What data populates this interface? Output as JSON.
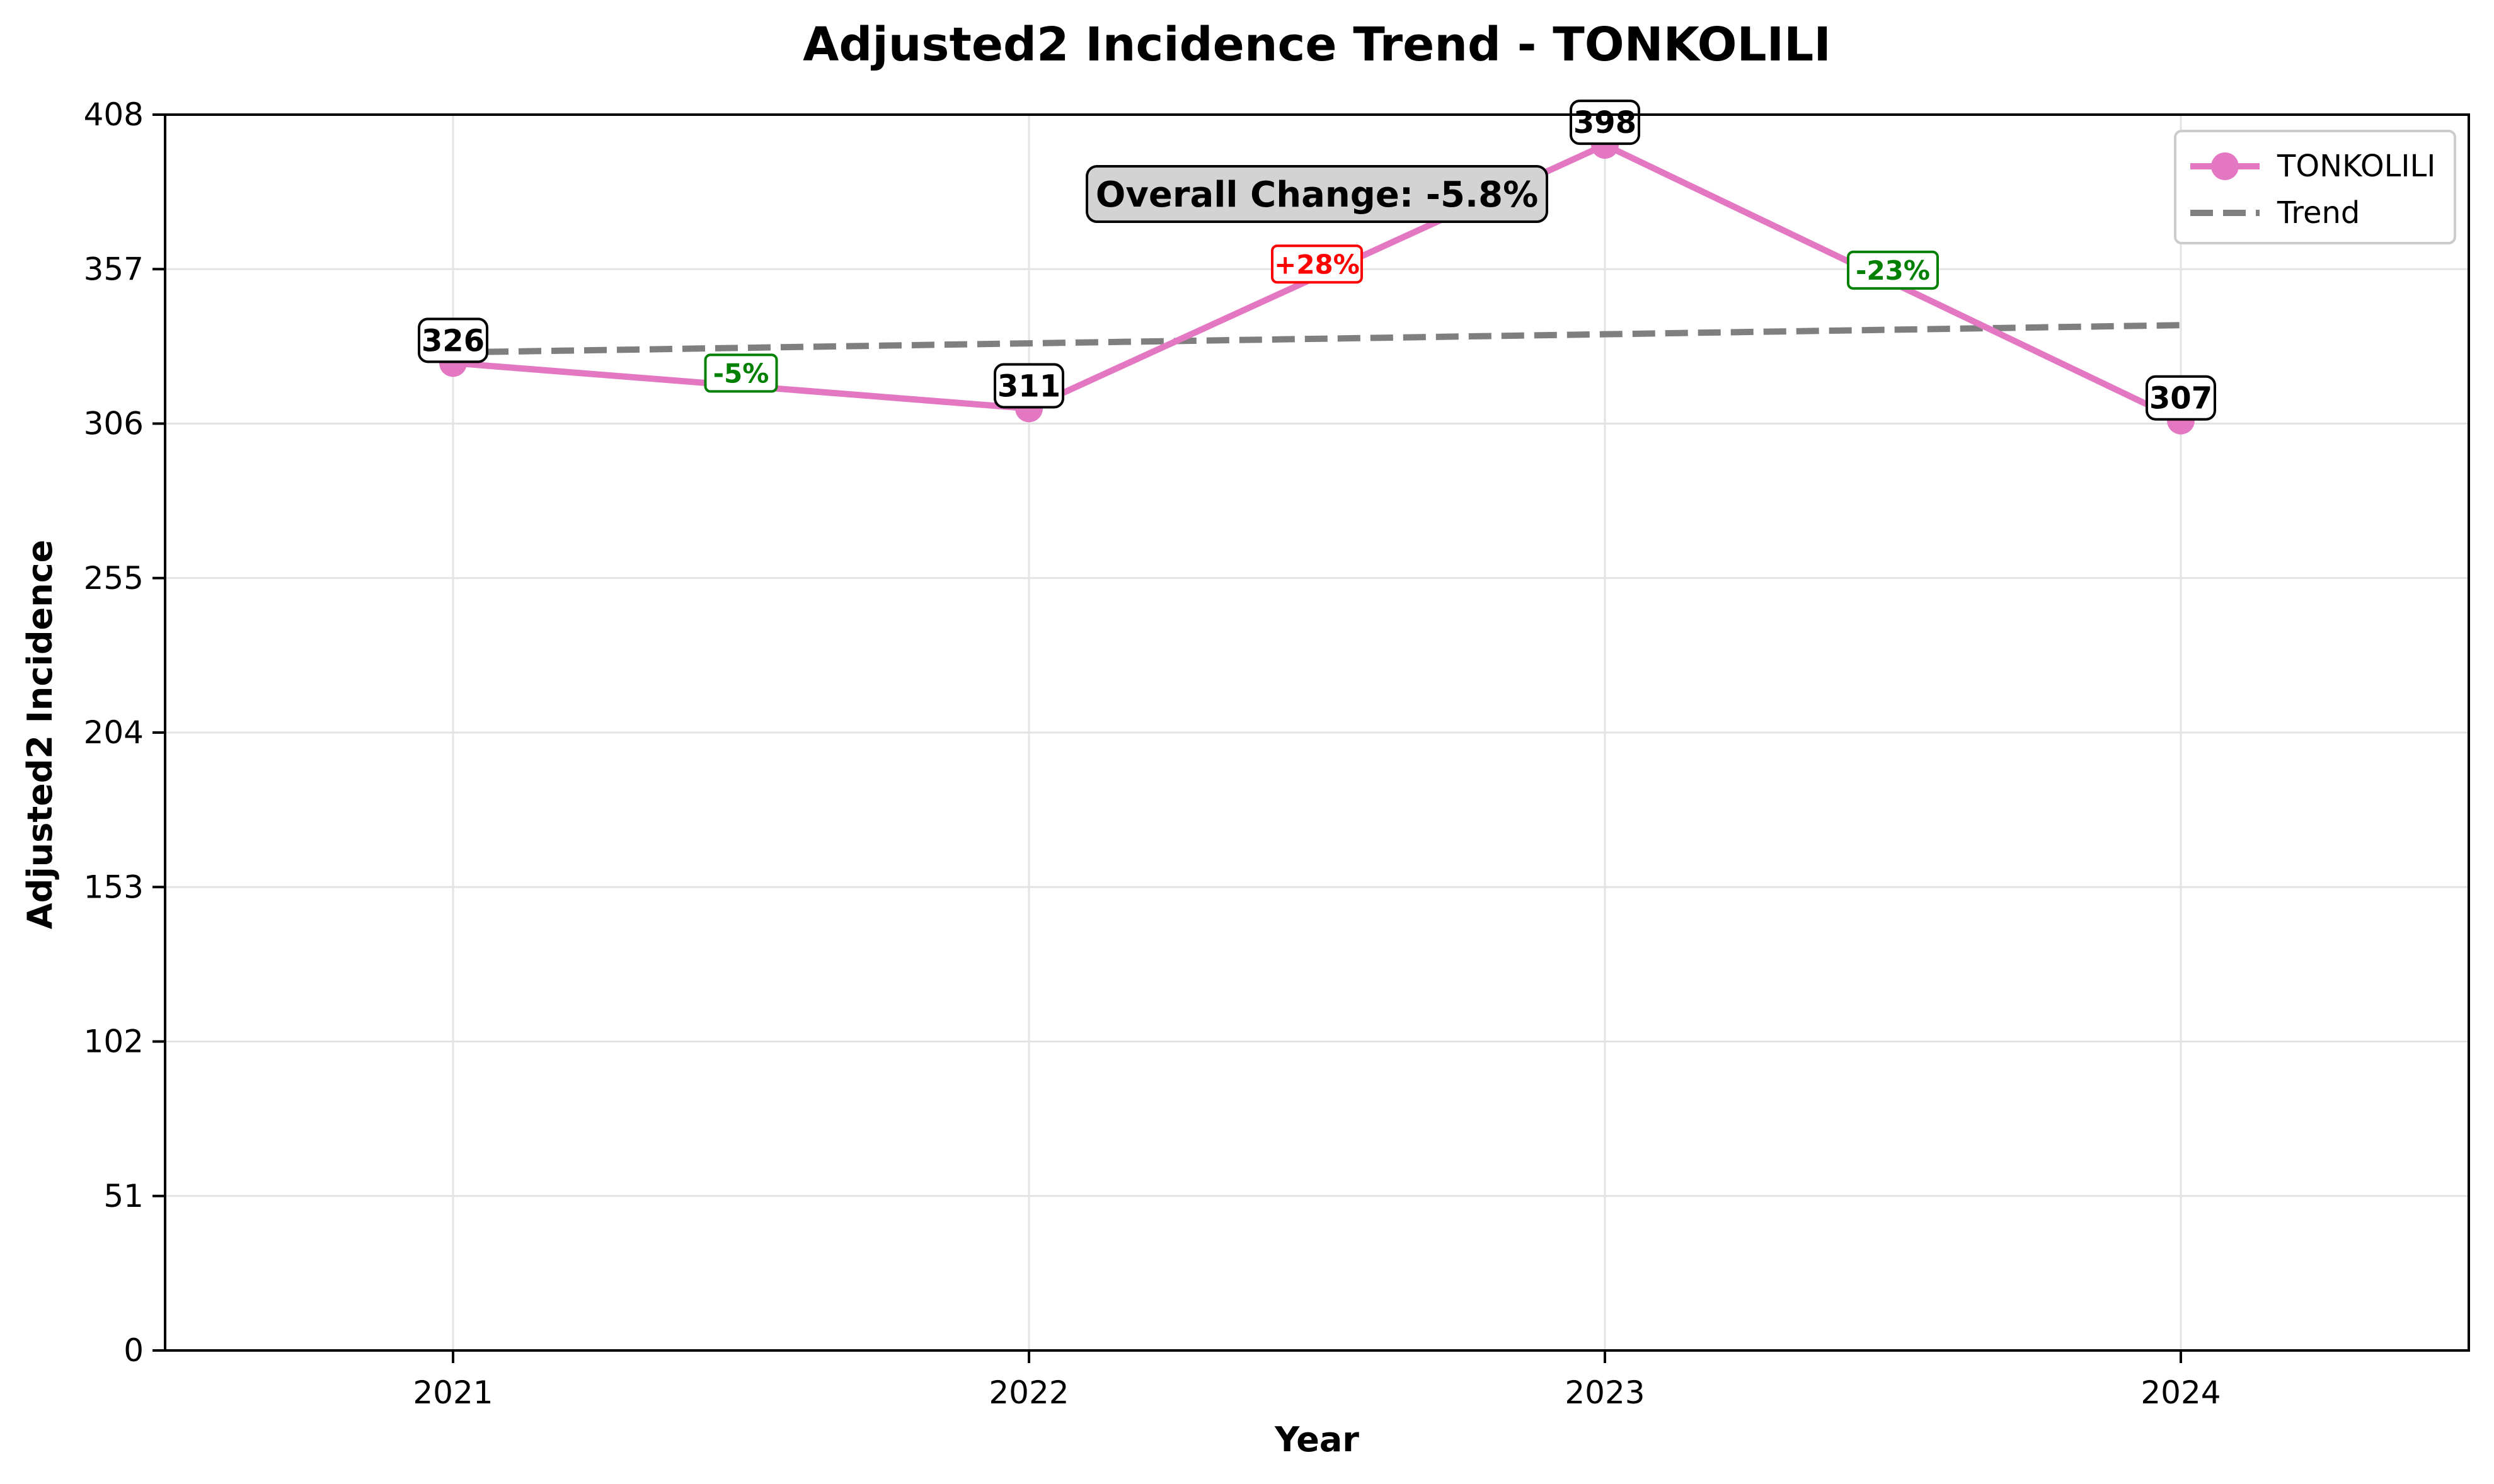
{
  "chart_data": {
    "type": "line",
    "title": "Adjusted2 Incidence Trend - TONKOLILI",
    "xlabel": "Year",
    "ylabel": "Adjusted2 Incidence",
    "ylim": [
      0,
      408
    ],
    "yticks": [
      0,
      51,
      102,
      153,
      204,
      255,
      306,
      357,
      408
    ],
    "categories": [
      "2021",
      "2022",
      "2023",
      "2024"
    ],
    "series": [
      {
        "name": "TONKOLILI",
        "values": [
          326,
          311,
          398,
          307
        ],
        "color": "#e377c2",
        "value_labels": [
          "326",
          "311",
          "398",
          "307"
        ]
      },
      {
        "name": "Trend",
        "values": [
          329.5,
          332.5,
          335.5,
          338.5
        ],
        "color": "#7f7f7f",
        "style": "dashed"
      }
    ],
    "change_annotations": [
      {
        "label": "-5%",
        "color": "#008000"
      },
      {
        "label": "+28%",
        "color": "#ff0000"
      },
      {
        "label": "-23%",
        "color": "#008000"
      }
    ],
    "overall_change": "Overall Change: -5.8%",
    "grid": true,
    "legend_position": "top-right"
  }
}
